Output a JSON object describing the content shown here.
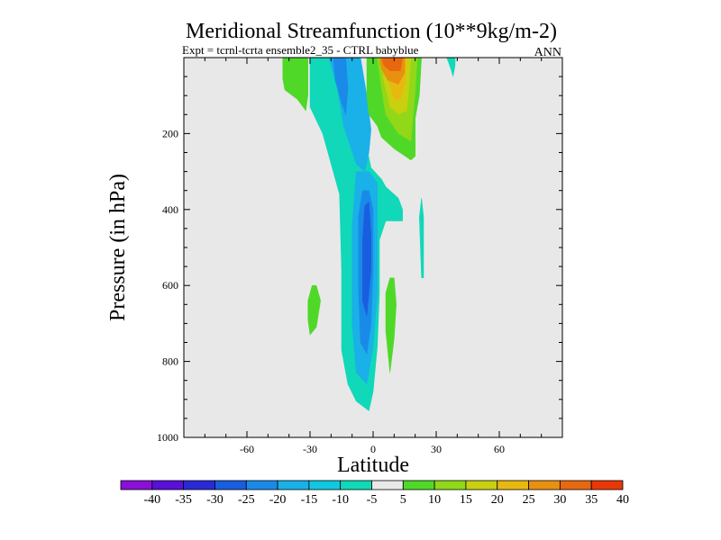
{
  "chart_data": {
    "type": "contour",
    "title": "Meridional Streamfunction (10**9kg/m-2)",
    "subtitle": "Expt = tcrnl-tcrta   ensemble2_35 - CTRL babyblue",
    "season": "ANN",
    "xlabel": "Latitude",
    "ylabel": "Pressure (in hPa)",
    "xlim": [
      -90,
      90
    ],
    "ylim": [
      1000,
      0
    ],
    "x_ticks": [
      -60,
      -30,
      0,
      30,
      60
    ],
    "x_tick_labels": [
      "-60",
      "-30",
      "0",
      "30",
      "60"
    ],
    "y_ticks": [
      200,
      400,
      600,
      800,
      1000
    ],
    "y_tick_labels": [
      "200",
      "400",
      "600",
      "800",
      "1000"
    ],
    "background_color": "#e8e8e8",
    "colorbar": {
      "levels": [
        -40,
        -35,
        -30,
        -25,
        -20,
        -15,
        -10,
        -5,
        5,
        10,
        15,
        20,
        25,
        30,
        35,
        40
      ],
      "labels": [
        "-40",
        "-35",
        "-30",
        "-25",
        "-20",
        "-15",
        "-10",
        "-5",
        "5",
        "10",
        "15",
        "20",
        "25",
        "30",
        "35",
        "40"
      ],
      "colors": [
        "#8a10d8",
        "#5a10d8",
        "#2a2ad8",
        "#1a5ee0",
        "#1a8ae8",
        "#1ab0e8",
        "#10c8e0",
        "#10d8b8",
        "#e8e8e8",
        "#50d828",
        "#90d818",
        "#c8d010",
        "#e8b810",
        "#e89010",
        "#e86810",
        "#e83808"
      ]
    },
    "regions": [
      {
        "name": "negative-cell-outer",
        "value": -10,
        "color": "#10d8b8",
        "points": [
          [
            -14,
            0
          ],
          [
            -11,
            40
          ],
          [
            -7,
            120
          ],
          [
            -4,
            210
          ],
          [
            -1,
            290
          ],
          [
            4,
            320
          ],
          [
            6,
            340
          ],
          [
            12,
            370
          ],
          [
            14,
            400
          ],
          [
            14,
            430
          ],
          [
            6,
            430
          ],
          [
            3,
            480
          ],
          [
            3,
            620
          ],
          [
            2,
            760
          ],
          [
            0,
            880
          ],
          [
            -2,
            930
          ],
          [
            -8,
            905
          ],
          [
            -12,
            860
          ],
          [
            -15,
            770
          ],
          [
            -15,
            560
          ],
          [
            -16,
            360
          ],
          [
            -24,
            200
          ],
          [
            -30,
            130
          ],
          [
            -30,
            0
          ]
        ]
      },
      {
        "name": "negative-cell-mid",
        "value": -15,
        "color": "#1ab0e8",
        "points": [
          [
            -21,
            0
          ],
          [
            -17,
            80
          ],
          [
            -14,
            180
          ],
          [
            -8,
            280
          ],
          [
            -4,
            300
          ],
          [
            -2,
            250
          ],
          [
            -1,
            190
          ],
          [
            -3,
            100
          ],
          [
            -6,
            0
          ]
        ]
      },
      {
        "name": "negative-cell-lower",
        "value": -15,
        "color": "#1ab0e8",
        "points": [
          [
            -2,
            300
          ],
          [
            2,
            330
          ],
          [
            2,
            480
          ],
          [
            2,
            620
          ],
          [
            0,
            760
          ],
          [
            -3,
            860
          ],
          [
            -8,
            830
          ],
          [
            -10,
            700
          ],
          [
            -10,
            450
          ],
          [
            -8,
            300
          ]
        ]
      },
      {
        "name": "negative-core-upper",
        "value": -20,
        "color": "#1a8ae8",
        "points": [
          [
            -19,
            0
          ],
          [
            -18,
            60
          ],
          [
            -15,
            120
          ],
          [
            -13,
            150
          ],
          [
            -12,
            80
          ],
          [
            -13,
            0
          ]
        ]
      },
      {
        "name": "negative-core-lower",
        "value": -20,
        "color": "#1a8ae8",
        "points": [
          [
            -2,
            350
          ],
          [
            0,
            400
          ],
          [
            0,
            560
          ],
          [
            -1,
            700
          ],
          [
            -3,
            780
          ],
          [
            -6,
            750
          ],
          [
            -7,
            600
          ],
          [
            -7,
            420
          ],
          [
            -5,
            350
          ]
        ]
      },
      {
        "name": "negative-core-inner",
        "value": -25,
        "color": "#1a5ee0",
        "points": [
          [
            -2,
            380
          ],
          [
            -1,
            460
          ],
          [
            -1,
            560
          ],
          [
            -3,
            680
          ],
          [
            -5,
            640
          ],
          [
            -5,
            480
          ],
          [
            -4,
            390
          ]
        ]
      },
      {
        "name": "positive-cell-green",
        "value": 5,
        "color": "#50d828",
        "points": [
          [
            -3,
            0
          ],
          [
            -3,
            100
          ],
          [
            -2,
            150
          ],
          [
            2,
            180
          ],
          [
            4,
            210
          ],
          [
            10,
            240
          ],
          [
            18,
            270
          ],
          [
            20,
            260
          ],
          [
            20,
            160
          ],
          [
            22,
            100
          ],
          [
            23,
            0
          ]
        ]
      },
      {
        "name": "positive-cell-yellowgreen",
        "value": 10,
        "color": "#90d818",
        "points": [
          [
            2,
            0
          ],
          [
            4,
            80
          ],
          [
            6,
            150
          ],
          [
            12,
            200
          ],
          [
            18,
            220
          ],
          [
            19,
            150
          ],
          [
            20,
            90
          ],
          [
            21,
            0
          ]
        ]
      },
      {
        "name": "positive-cell-yellow",
        "value": 15,
        "color": "#c8d010",
        "points": [
          [
            4,
            0
          ],
          [
            5,
            60
          ],
          [
            8,
            130
          ],
          [
            12,
            150
          ],
          [
            16,
            140
          ],
          [
            17,
            80
          ],
          [
            18,
            0
          ]
        ]
      },
      {
        "name": "positive-cell-gold",
        "value": 20,
        "color": "#e8b810",
        "points": [
          [
            5,
            0
          ],
          [
            7,
            50
          ],
          [
            10,
            110
          ],
          [
            13,
            110
          ],
          [
            15,
            70
          ],
          [
            16,
            0
          ]
        ]
      },
      {
        "name": "positive-cell-orange",
        "value": 25,
        "color": "#e89010",
        "points": [
          [
            3,
            0
          ],
          [
            4,
            30
          ],
          [
            7,
            60
          ],
          [
            12,
            70
          ],
          [
            15,
            40
          ],
          [
            15,
            0
          ]
        ]
      },
      {
        "name": "positive-cell-deep-orange",
        "value": 30,
        "color": "#e86810",
        "points": [
          [
            4,
            0
          ],
          [
            5,
            20
          ],
          [
            8,
            35
          ],
          [
            13,
            35
          ],
          [
            14,
            0
          ]
        ]
      },
      {
        "name": "sh-upper-green",
        "value": 5,
        "color": "#50d828",
        "points": [
          [
            -43,
            0
          ],
          [
            -43,
            55
          ],
          [
            -42,
            85
          ],
          [
            -36,
            110
          ],
          [
            -32,
            140
          ],
          [
            -31,
            100
          ],
          [
            -31,
            0
          ]
        ]
      },
      {
        "name": "sh-lower-green",
        "value": 5,
        "color": "#50d828",
        "points": [
          [
            -29,
            600
          ],
          [
            -31,
            640
          ],
          [
            -31,
            690
          ],
          [
            -30,
            730
          ],
          [
            -27,
            710
          ],
          [
            -25,
            640
          ],
          [
            -27,
            600
          ]
        ]
      },
      {
        "name": "nh-lower-green",
        "value": 5,
        "color": "#50d828",
        "points": [
          [
            8,
            580
          ],
          [
            6,
            620
          ],
          [
            6,
            720
          ],
          [
            8,
            830
          ],
          [
            10,
            740
          ],
          [
            11,
            650
          ],
          [
            10,
            580
          ]
        ]
      },
      {
        "name": "nh-thin-teal",
        "value": -5,
        "color": "#10d8b8",
        "points": [
          [
            23,
            370
          ],
          [
            22,
            420
          ],
          [
            23,
            580
          ],
          [
            24,
            580
          ],
          [
            24,
            420
          ]
        ]
      },
      {
        "name": "nh-upper-teal",
        "value": -5,
        "color": "#10d8b8",
        "points": [
          [
            35,
            0
          ],
          [
            37,
            30
          ],
          [
            38,
            50
          ],
          [
            39,
            20
          ],
          [
            39,
            0
          ]
        ]
      }
    ]
  }
}
